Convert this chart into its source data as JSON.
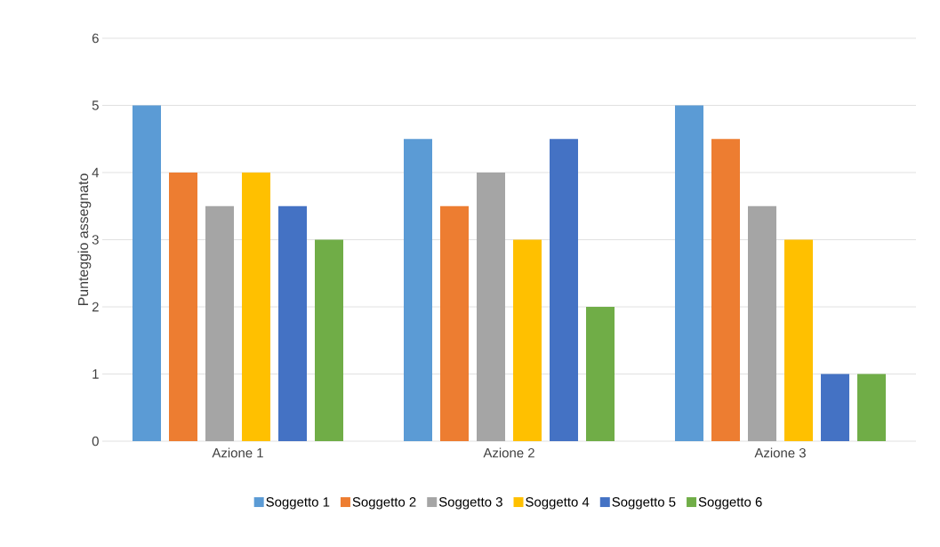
{
  "chart_data": {
    "type": "bar",
    "ylabel": "Punteggio assegnato",
    "categories": [
      "Azione 1",
      "Azione 2",
      "Azione 3"
    ],
    "series": [
      {
        "name": "Soggetto 1",
        "color": "#5b9bd5",
        "values": [
          5,
          4.5,
          5
        ]
      },
      {
        "name": "Soggetto 2",
        "color": "#ed7d31",
        "values": [
          4,
          3.5,
          4.5
        ]
      },
      {
        "name": "Soggetto 3",
        "color": "#a5a5a5",
        "values": [
          3.5,
          4,
          3.5
        ]
      },
      {
        "name": "Soggetto 4",
        "color": "#ffc000",
        "values": [
          4,
          3,
          3
        ]
      },
      {
        "name": "Soggetto 5",
        "color": "#4472c4",
        "values": [
          3.5,
          4.5,
          1
        ]
      },
      {
        "name": "Soggetto 6",
        "color": "#70ad47",
        "values": [
          3,
          2,
          1
        ]
      }
    ],
    "ylim": [
      0,
      6
    ],
    "yticks": [
      0,
      1,
      2,
      3,
      4,
      5,
      6
    ],
    "grid": "y",
    "legend": "bottom"
  }
}
